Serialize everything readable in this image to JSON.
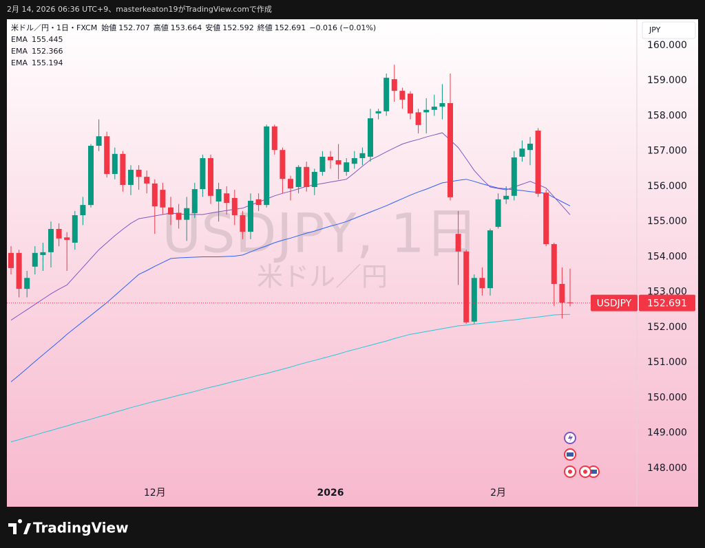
{
  "caption": "2月 14, 2026 06:36 UTC+9、masterkeaton19がTradingView.comで作成",
  "legend": {
    "symbol": "米ドル／円・1日・FXCM",
    "open_label": "始値",
    "high_label": "高値",
    "low_label": "安値",
    "close_label": "終値",
    "change": "−0.016 (−0.01%)"
  },
  "watermark": {
    "title": "USDJPY, 1日",
    "subtitle": "米ドル／円"
  },
  "currency": "JPY",
  "brand": "TradingView",
  "chart_data": {
    "type": "candlestick",
    "categories": [
      null,
      null,
      null,
      null,
      null,
      null,
      null,
      null,
      null,
      null,
      null,
      null,
      null,
      null,
      null,
      null,
      null,
      null,
      "12月",
      null,
      null,
      null,
      null,
      null,
      null,
      null,
      null,
      null,
      null,
      null,
      null,
      null,
      null,
      null,
      null,
      null,
      null,
      null,
      null,
      null,
      "2026",
      null,
      null,
      null,
      null,
      null,
      null,
      null,
      null,
      null,
      null,
      null,
      null,
      null,
      null,
      null,
      null,
      null,
      null,
      null,
      null,
      "2月",
      null,
      null,
      null,
      null,
      null,
      null,
      null,
      null,
      null
    ],
    "open": [
      154.11,
      154.11,
      153.09,
      153.72,
      154.05,
      154.13,
      154.79,
      154.55,
      154.4,
      155.18,
      155.47,
      157.15,
      157.42,
      156.35,
      156.92,
      156.04,
      156.47,
      156.27,
      156.08,
      155.9,
      155.4,
      155.25,
      155.05,
      155.24,
      155.92,
      156.8,
      155.57,
      155.8,
      155.67,
      155.18,
      154.71,
      155.63,
      155.47,
      157.7,
      157.03,
      156.21,
      155.98,
      156.55,
      155.98,
      156.41,
      156.84,
      156.74,
      156.41,
      156.64,
      156.8,
      156.84,
      158.07,
      158.13,
      159.04,
      158.71,
      158.63,
      158.1,
      158.1,
      158.17,
      158.26,
      158.36,
      154.65,
      154.15,
      152.16,
      153.4,
      153.11,
      154.85,
      155.63,
      155.73,
      156.84,
      157.03,
      157.58,
      155.82,
      154.36,
      153.23,
      152.707
    ],
    "high": [
      154.3,
      154.2,
      153.6,
      154.3,
      154.4,
      155.0,
      154.95,
      154.7,
      155.3,
      155.7,
      157.2,
      157.9,
      157.55,
      157.1,
      157.0,
      156.6,
      156.6,
      156.45,
      156.2,
      156.1,
      155.7,
      155.5,
      155.7,
      156.1,
      156.9,
      156.9,
      156.1,
      156.0,
      155.9,
      155.3,
      155.8,
      155.8,
      157.75,
      157.75,
      157.1,
      156.3,
      156.6,
      156.7,
      156.5,
      157.0,
      157.0,
      157.2,
      156.8,
      157.0,
      157.1,
      158.2,
      158.2,
      159.2,
      159.45,
      158.8,
      158.7,
      158.2,
      158.5,
      158.6,
      158.9,
      159.2,
      155.3,
      154.2,
      153.5,
      153.7,
      154.8,
      155.8,
      156.0,
      157.0,
      157.3,
      157.4,
      157.65,
      155.9,
      154.4,
      153.7,
      153.664
    ],
    "low": [
      153.5,
      152.85,
      152.85,
      153.5,
      153.6,
      153.7,
      154.3,
      153.6,
      154.2,
      154.9,
      155.4,
      157.0,
      156.25,
      156.2,
      155.85,
      155.75,
      155.9,
      155.8,
      154.65,
      155.2,
      154.9,
      154.8,
      154.45,
      155.1,
      155.7,
      155.5,
      155.0,
      155.2,
      154.9,
      154.5,
      154.5,
      155.3,
      155.4,
      156.9,
      155.8,
      155.6,
      155.8,
      155.85,
      155.75,
      156.3,
      156.5,
      156.2,
      156.3,
      156.5,
      156.6,
      156.7,
      157.9,
      158.0,
      158.4,
      158.2,
      157.9,
      157.5,
      157.5,
      158.0,
      157.9,
      155.6,
      153.2,
      152.1,
      152.1,
      152.9,
      152.9,
      154.8,
      155.5,
      155.6,
      156.7,
      156.6,
      155.7,
      154.3,
      152.6,
      152.25,
      152.592
    ],
    "close": [
      153.68,
      153.09,
      153.4,
      154.11,
      154.13,
      154.79,
      154.52,
      154.48,
      155.18,
      155.47,
      157.15,
      157.42,
      156.35,
      156.92,
      156.04,
      156.47,
      156.27,
      156.08,
      155.43,
      155.4,
      155.2,
      155.05,
      155.38,
      155.92,
      156.8,
      155.73,
      155.92,
      155.53,
      155.18,
      154.71,
      155.59,
      155.47,
      157.7,
      157.03,
      156.21,
      155.94,
      156.55,
      155.98,
      156.41,
      156.84,
      156.74,
      156.62,
      156.68,
      156.8,
      156.94,
      157.93,
      158.13,
      159.08,
      158.71,
      158.46,
      158.07,
      157.74,
      158.17,
      158.26,
      158.36,
      155.69,
      154.15,
      152.14,
      153.4,
      153.11,
      154.75,
      155.63,
      155.73,
      156.82,
      157.07,
      157.21,
      155.79,
      154.36,
      153.23,
      152.7,
      152.691
    ],
    "up_color": "#089981",
    "down_color": "#f23645",
    "series": [
      {
        "name": "EMA",
        "color": "#2962ff",
        "values": [
          150.45,
          150.64,
          150.83,
          151.03,
          151.22,
          151.41,
          151.6,
          151.8,
          151.98,
          152.16,
          152.34,
          152.52,
          152.7,
          152.9,
          153.1,
          153.3,
          153.5,
          153.61,
          153.73,
          153.84,
          153.95,
          153.97,
          153.98,
          153.99,
          154.0,
          154.0,
          154.0,
          154.01,
          154.02,
          154.05,
          154.14,
          154.23,
          154.31,
          154.4,
          154.47,
          154.53,
          154.6,
          154.67,
          154.73,
          154.8,
          154.87,
          154.93,
          155.0,
          155.09,
          155.18,
          155.27,
          155.36,
          155.45,
          155.55,
          155.65,
          155.75,
          155.84,
          155.92,
          156.01,
          156.1,
          156.13,
          156.17,
          156.2,
          156.14,
          156.07,
          156.01,
          155.95,
          155.93,
          155.9,
          155.88,
          155.85,
          155.83,
          155.8,
          155.68,
          155.56,
          155.445
        ]
      },
      {
        "name": "EMA",
        "color": "#26c6da",
        "values": [
          148.75,
          148.81,
          148.88,
          148.94,
          149.01,
          149.07,
          149.14,
          149.2,
          149.27,
          149.33,
          149.39,
          149.46,
          149.52,
          149.59,
          149.65,
          149.72,
          149.78,
          149.84,
          149.9,
          149.95,
          150.01,
          150.07,
          150.12,
          150.18,
          150.24,
          150.3,
          150.35,
          150.41,
          150.47,
          150.52,
          150.58,
          150.64,
          150.69,
          150.75,
          150.81,
          150.87,
          150.94,
          151.0,
          151.06,
          151.12,
          151.18,
          151.24,
          151.31,
          151.37,
          151.43,
          151.49,
          151.55,
          151.61,
          151.68,
          151.74,
          151.8,
          151.84,
          151.88,
          151.92,
          151.96,
          152.0,
          152.04,
          152.06,
          152.09,
          152.11,
          152.14,
          152.16,
          152.19,
          152.21,
          152.24,
          152.27,
          152.29,
          152.32,
          152.35,
          152.36,
          152.366
        ]
      },
      {
        "name": "EMA",
        "color": "#7e57c2",
        "values": [
          152.2,
          152.35,
          152.5,
          152.65,
          152.8,
          152.95,
          153.08,
          153.2,
          153.45,
          153.7,
          153.95,
          154.2,
          154.4,
          154.6,
          154.78,
          154.95,
          155.08,
          155.12,
          155.16,
          155.2,
          155.24,
          155.22,
          155.2,
          155.2,
          155.2,
          155.24,
          155.28,
          155.31,
          155.35,
          155.38,
          155.47,
          155.55,
          155.64,
          155.73,
          155.8,
          155.86,
          155.93,
          156.0,
          156.04,
          156.08,
          156.12,
          156.16,
          156.2,
          156.38,
          156.57,
          156.75,
          156.86,
          156.98,
          157.09,
          157.2,
          157.27,
          157.33,
          157.4,
          157.46,
          157.52,
          157.31,
          157.1,
          156.78,
          156.45,
          156.2,
          155.98,
          155.94,
          155.9,
          155.98,
          156.06,
          156.14,
          156.05,
          155.95,
          155.7,
          155.45,
          155.194
        ]
      }
    ],
    "price_tag": "USDJPY",
    "ylim": [
      146.907,
      160.741
    ],
    "yticks": [
      {
        "value": 160,
        "label": "160.000"
      },
      {
        "value": 159,
        "label": "159.000"
      },
      {
        "value": 158,
        "label": "158.000"
      },
      {
        "value": 157,
        "label": "157.000"
      },
      {
        "value": 156,
        "label": "156.000"
      },
      {
        "value": 155,
        "label": "155.000"
      },
      {
        "value": 154,
        "label": "154.000"
      },
      {
        "value": 153,
        "label": "153.000"
      },
      {
        "value": 152,
        "label": "152.000"
      },
      {
        "value": 151,
        "label": "151.000"
      },
      {
        "value": 150,
        "label": "150.000"
      },
      {
        "value": 149,
        "label": "149.000"
      },
      {
        "value": 148,
        "label": "148.000"
      }
    ],
    "grid": false
  }
}
